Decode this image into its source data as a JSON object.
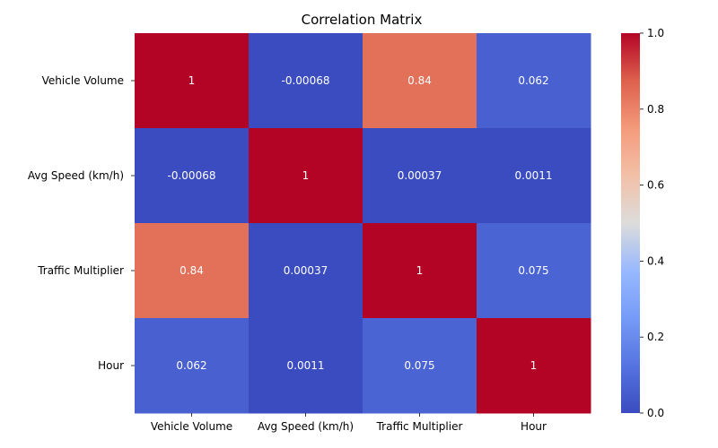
{
  "chart_data": {
    "type": "heatmap",
    "title": "Correlation Matrix",
    "xlabel": "",
    "ylabel": "",
    "x_labels": [
      "Vehicle Volume",
      "Avg Speed (km/h)",
      "Traffic Multiplier",
      "Hour"
    ],
    "y_labels": [
      "Vehicle Volume",
      "Avg Speed (km/h)",
      "Traffic Multiplier",
      "Hour"
    ],
    "values": [
      [
        1,
        -0.00068,
        0.84,
        0.062
      ],
      [
        -0.00068,
        1,
        0.00037,
        0.0011
      ],
      [
        0.84,
        0.00037,
        1,
        0.075
      ],
      [
        0.062,
        0.0011,
        0.075,
        1
      ]
    ],
    "value_labels": [
      [
        "1",
        "-0.00068",
        "0.84",
        "0.062"
      ],
      [
        "-0.00068",
        "1",
        "0.00037",
        "0.0011"
      ],
      [
        "0.84",
        "0.00037",
        "1",
        "0.075"
      ],
      [
        "0.062",
        "0.0011",
        "0.075",
        "1"
      ]
    ],
    "colorscale": "coolwarm",
    "color_range": [
      0.0,
      1.0
    ],
    "colorbar_ticks": [
      "0.0",
      "0.2",
      "0.4",
      "0.6",
      "0.8",
      "1.0"
    ],
    "grid": false
  }
}
